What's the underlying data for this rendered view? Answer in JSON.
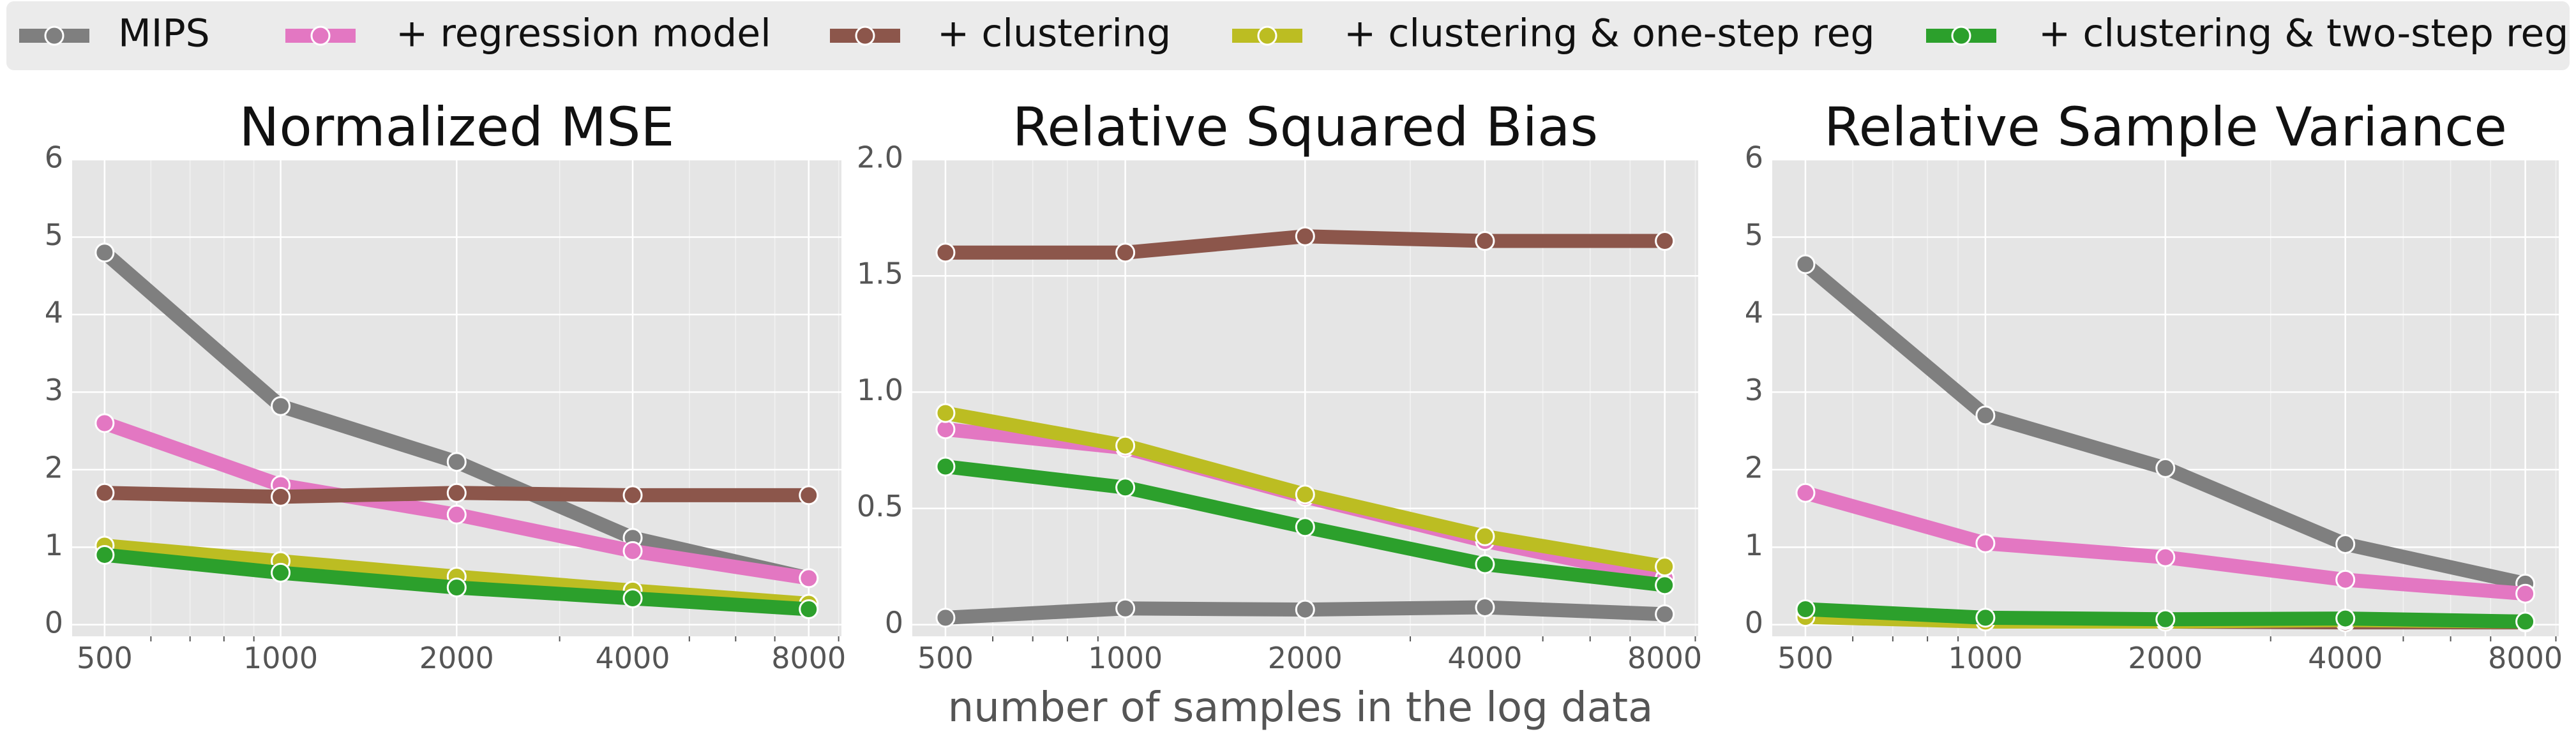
{
  "figure": {
    "xlabel": "number of samples in the log data",
    "colors": {
      "MIPS": "#7f7f7f",
      "+ regression model": "#e377c2",
      "+ clustering": "#8c564b",
      "+ clustering & one-step reg": "#bcbd22",
      "+ clustering & two-step reg": "#2ca02c"
    },
    "legend": {
      "placement": "top",
      "entries": [
        "MIPS",
        "+ regression model",
        "+ clustering",
        "+ clustering & one-step reg",
        "+ clustering & two-step reg"
      ]
    }
  },
  "chart_data": [
    {
      "type": "line",
      "title": "Normalized MSE",
      "xscale": "log",
      "x": [
        500,
        1000,
        2000,
        4000,
        8000
      ],
      "ylim": [
        0,
        6
      ],
      "yticks": [
        0,
        1,
        2,
        3,
        4,
        5,
        6
      ],
      "ytick_labels": [
        "0",
        "1",
        "2",
        "3",
        "4",
        "5",
        "6"
      ],
      "grid": true,
      "series": [
        {
          "name": "MIPS",
          "values": [
            4.8,
            2.82,
            2.1,
            1.12,
            0.6
          ]
        },
        {
          "name": "+ regression model",
          "values": [
            2.6,
            1.8,
            1.42,
            0.95,
            0.6
          ]
        },
        {
          "name": "+ clustering",
          "values": [
            1.7,
            1.65,
            1.7,
            1.67,
            1.67
          ]
        },
        {
          "name": "+ clustering & one-step reg",
          "values": [
            1.02,
            0.82,
            0.62,
            0.44,
            0.27
          ]
        },
        {
          "name": "+ clustering & two-step reg",
          "values": [
            0.9,
            0.67,
            0.48,
            0.34,
            0.2
          ]
        }
      ]
    },
    {
      "type": "line",
      "title": "Relative Squared Bias",
      "xscale": "log",
      "x": [
        500,
        1000,
        2000,
        4000,
        8000
      ],
      "ylim": [
        0,
        2.0
      ],
      "yticks": [
        0,
        0.5,
        1.0,
        1.5,
        2.0
      ],
      "ytick_labels": [
        "0",
        "0.5",
        "1.0",
        "1.5",
        "2.0"
      ],
      "grid": true,
      "series": [
        {
          "name": "MIPS",
          "values": [
            0.03,
            0.07,
            0.065,
            0.075,
            0.045
          ]
        },
        {
          "name": "+ regression model",
          "values": [
            0.84,
            0.76,
            0.55,
            0.36,
            0.2
          ]
        },
        {
          "name": "+ clustering",
          "values": [
            1.6,
            1.6,
            1.67,
            1.65,
            1.65
          ]
        },
        {
          "name": "+ clustering & one-step reg",
          "values": [
            0.91,
            0.77,
            0.56,
            0.38,
            0.25
          ]
        },
        {
          "name": "+ clustering & two-step reg",
          "values": [
            0.68,
            0.59,
            0.42,
            0.26,
            0.17
          ]
        }
      ]
    },
    {
      "type": "line",
      "title": "Relative Sample Variance",
      "xscale": "log",
      "x": [
        500,
        1000,
        2000,
        4000,
        8000
      ],
      "ylim": [
        0,
        6
      ],
      "yticks": [
        0,
        1,
        2,
        3,
        4,
        5,
        6
      ],
      "ytick_labels": [
        "0",
        "1",
        "2",
        "3",
        "4",
        "5",
        "6"
      ],
      "grid": true,
      "series": [
        {
          "name": "MIPS",
          "values": [
            4.65,
            2.7,
            2.02,
            1.04,
            0.53
          ]
        },
        {
          "name": "+ regression model",
          "values": [
            1.7,
            1.05,
            0.87,
            0.58,
            0.4
          ]
        },
        {
          "name": "+ clustering",
          "values": [
            0.12,
            0.05,
            0.04,
            0.03,
            0.03
          ]
        },
        {
          "name": "+ clustering & one-step reg",
          "values": [
            0.1,
            0.04,
            0.04,
            0.06,
            0.04
          ]
        },
        {
          "name": "+ clustering & two-step reg",
          "values": [
            0.2,
            0.09,
            0.07,
            0.08,
            0.04
          ]
        }
      ]
    }
  ]
}
